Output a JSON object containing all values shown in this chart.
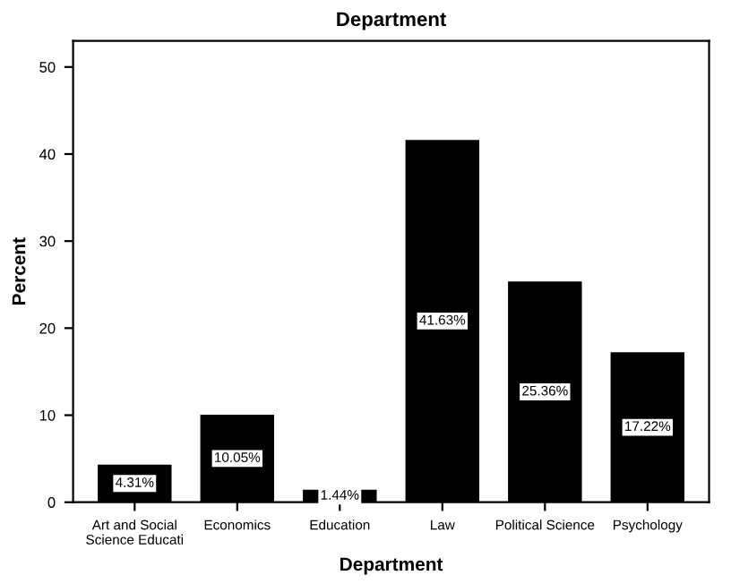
{
  "chart_data": {
    "type": "bar",
    "title": "Department",
    "xlabel": "Department",
    "ylabel": "Percent",
    "categories": [
      "Art and Social\nScience Educati",
      "Economics",
      "Education",
      "Law",
      "Political Science",
      "Psychology"
    ],
    "values": [
      4.31,
      10.05,
      1.44,
      41.63,
      25.36,
      17.22
    ],
    "value_labels": [
      "4.31%",
      "10.05%",
      "1.44%",
      "41.63%",
      "25.36%",
      "17.22%"
    ],
    "color": "#000000",
    "ylim": [
      0,
      53
    ],
    "yticks": [
      0,
      10,
      20,
      30,
      40,
      50
    ],
    "grid": false
  }
}
